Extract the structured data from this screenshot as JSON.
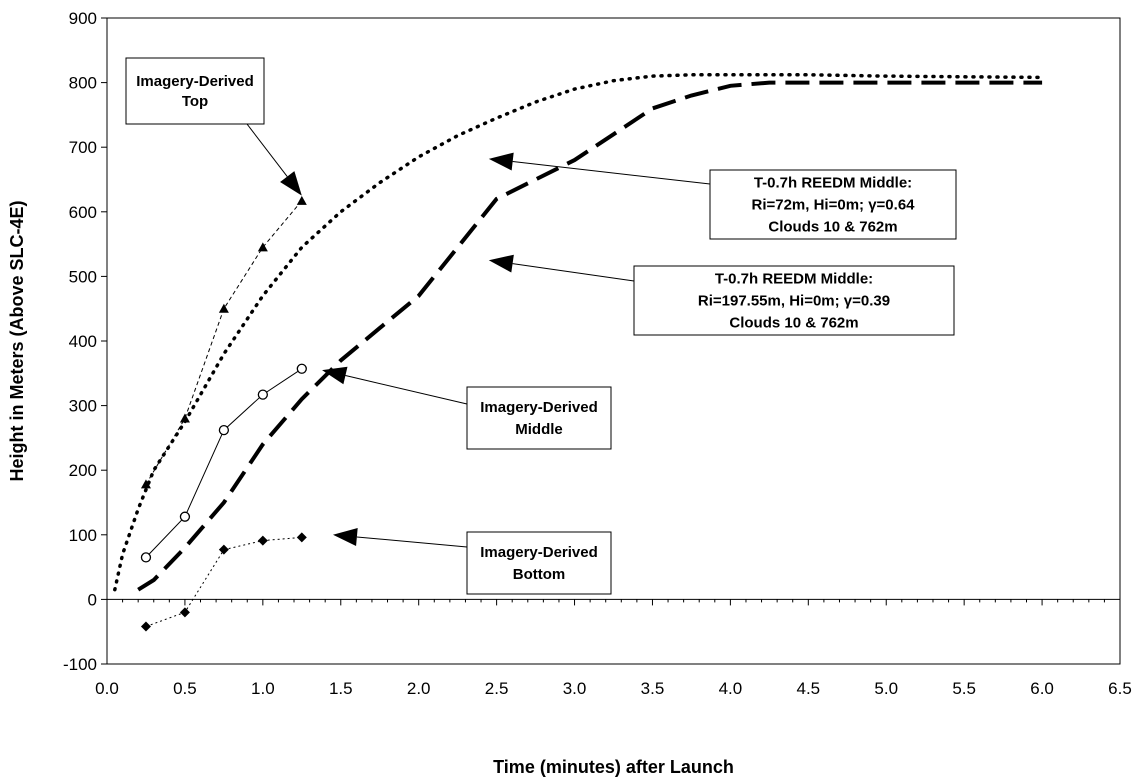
{
  "chart_data": {
    "type": "line",
    "title": "",
    "xlabel": "Time (minutes) after Launch",
    "ylabel": "Height in Meters (Above SLC-4E)",
    "xlim": [
      0.0,
      6.5
    ],
    "ylim": [
      -100,
      900
    ],
    "xticks": [
      "0.0",
      "0.5",
      "1.0",
      "1.5",
      "2.0",
      "2.5",
      "3.0",
      "3.5",
      "4.0",
      "4.5",
      "5.0",
      "5.5",
      "6.0",
      "6.5"
    ],
    "yticks": [
      "-100",
      "0",
      "100",
      "200",
      "300",
      "400",
      "500",
      "600",
      "700",
      "800",
      "900"
    ],
    "grid": false,
    "legend": "none",
    "series": [
      {
        "style": "dotted-thick",
        "x": [
          0.05,
          0.1,
          0.2,
          0.3,
          0.5,
          0.75,
          1.0,
          1.25,
          1.5,
          1.75,
          2.0,
          2.25,
          2.5,
          2.75,
          3.0,
          3.25,
          3.5,
          3.75,
          4.0,
          4.25,
          4.5,
          5.0,
          5.5,
          6.0
        ],
        "y": [
          15,
          70,
          140,
          200,
          275,
          380,
          470,
          545,
          600,
          645,
          685,
          718,
          745,
          770,
          790,
          803,
          810,
          812,
          812,
          812,
          812,
          810,
          809,
          808
        ]
      },
      {
        "style": "dashed-thick",
        "x": [
          0.2,
          0.3,
          0.5,
          0.75,
          1.0,
          1.25,
          1.5,
          1.75,
          2.0,
          2.25,
          2.5,
          2.75,
          3.0,
          3.25,
          3.5,
          3.75,
          4.0,
          4.25,
          4.5,
          5.0,
          5.5,
          6.0
        ],
        "y": [
          15,
          30,
          80,
          150,
          240,
          310,
          370,
          420,
          470,
          545,
          620,
          650,
          680,
          720,
          760,
          780,
          795,
          800,
          800,
          800,
          800,
          800
        ]
      },
      {
        "name": "Imagery-Derived Top",
        "marker": "triangle",
        "x": [
          0.25,
          0.5,
          0.75,
          1.0,
          1.25
        ],
        "y": [
          178,
          280,
          450,
          545,
          617
        ]
      },
      {
        "name": "Imagery-Derived Middle",
        "marker": "circle",
        "x": [
          0.25,
          0.5,
          0.75,
          1.0,
          1.25
        ],
        "y": [
          65,
          128,
          262,
          317,
          357
        ]
      },
      {
        "name": "Imagery-Derived Bottom",
        "marker": "diamond",
        "x": [
          0.25,
          0.5,
          0.75,
          1.0,
          1.25
        ],
        "y": [
          -42,
          -20,
          77,
          91,
          96
        ]
      }
    ],
    "annotations": [
      {
        "lines": [
          "Imagery-Derived",
          "Top"
        ],
        "arrow_to": [
          1.25,
          625
        ]
      },
      {
        "lines": [
          "T-0.7h REEDM Middle:",
          "Ri=72m, Hi=0m; γ=0.64",
          "Clouds 10 & 762m"
        ],
        "arrow_to": [
          2.45,
          682
        ]
      },
      {
        "lines": [
          "T-0.7h REEDM Middle:",
          "Ri=197.55m, Hi=0m; γ=0.39",
          "Clouds 10 & 762m"
        ],
        "arrow_to": [
          2.45,
          525
        ]
      },
      {
        "lines": [
          "Imagery-Derived",
          "Middle"
        ],
        "arrow_to": [
          1.38,
          355
        ]
      },
      {
        "lines": [
          "Imagery-Derived",
          "Bottom"
        ],
        "arrow_to": [
          1.45,
          100
        ]
      }
    ]
  }
}
